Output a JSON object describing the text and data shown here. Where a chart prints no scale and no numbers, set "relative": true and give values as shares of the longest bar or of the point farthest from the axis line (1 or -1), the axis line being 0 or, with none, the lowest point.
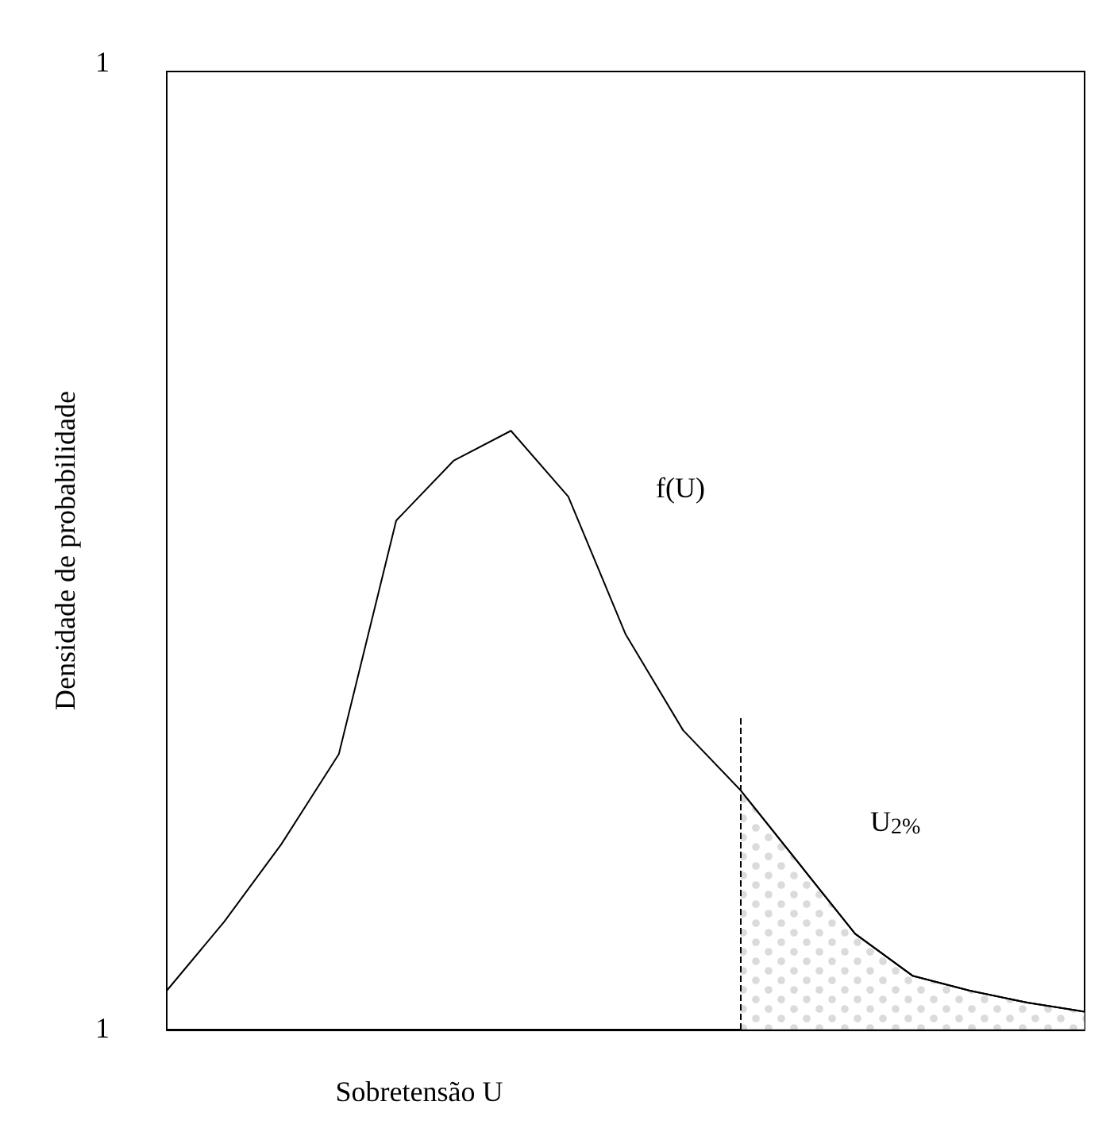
{
  "chart_data": {
    "type": "line",
    "relative": true,
    "xlabel": "Sobretensão U",
    "ylabel": "Densidade de probabilidade",
    "categories": [
      null,
      null,
      null,
      null,
      null,
      null,
      null,
      null,
      null,
      null,
      null,
      null,
      null,
      null,
      null,
      null,
      null
    ],
    "series": [
      {
        "color": "#000000",
        "values": [
          0.065,
          0.18,
          0.31,
          0.46,
          0.85,
          0.95,
          1,
          0.89,
          0.66,
          0.5,
          0.4,
          0.28,
          0.16,
          0.09,
          0.065,
          0.045,
          0.03
        ]
      },
      {
        "type": "area",
        "color": "#000000",
        "values": [
          null,
          null,
          null,
          null,
          null,
          null,
          null,
          null,
          null,
          null,
          0.4,
          0.28,
          0.16,
          0.09,
          0.065,
          0.045,
          0.03
        ]
      }
    ],
    "annotations": [
      "1",
      "1",
      "f(U)",
      "U$_{2%}$"
    ]
  }
}
